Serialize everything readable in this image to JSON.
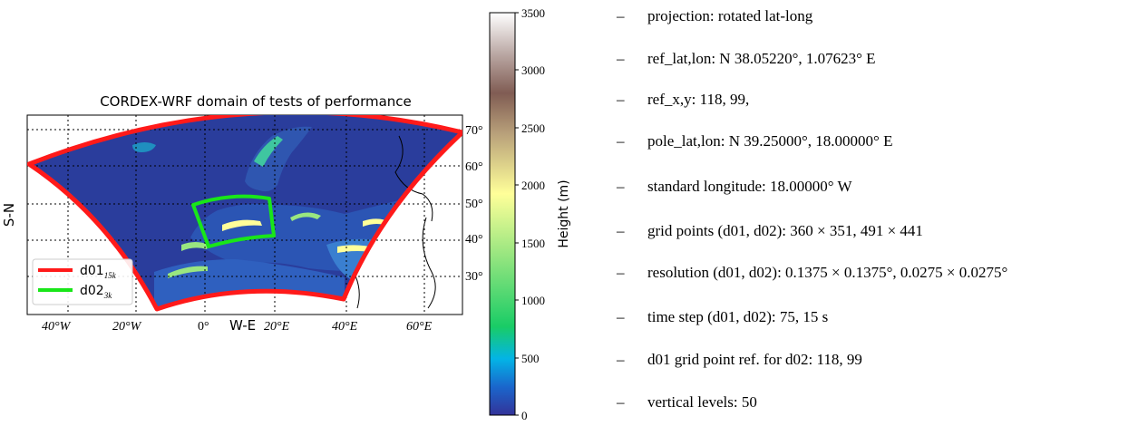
{
  "map": {
    "title": "CORDEX-WRF domain of tests of performance",
    "xlabel": "W-E",
    "ylabel": "S-N",
    "lon_ticks": [
      "40°W",
      "20°W",
      "0°",
      "20°E",
      "40°E",
      "60°E"
    ],
    "lat_ticks": [
      "70°",
      "60°",
      "50°",
      "40°",
      "30°"
    ],
    "legend": [
      {
        "label": "d01",
        "subscript": "15k",
        "color": "#ff1a1a"
      },
      {
        "label": "d02",
        "subscript": "3k",
        "color": "#19e619"
      }
    ],
    "colors": {
      "ocean": "#2a3d9c",
      "d01": "#ff1a1a",
      "d02": "#19e619"
    }
  },
  "colorbar": {
    "label": "Height (m)",
    "ticks": [
      "3500",
      "3000",
      "2500",
      "2000",
      "1500",
      "1000",
      "500",
      "0"
    ],
    "range": [
      0,
      3500
    ],
    "colormap": "terrain"
  },
  "params": [
    {
      "dash": "–",
      "text": "projection: rotated lat-long"
    },
    {
      "dash": "–",
      "text": "ref_lat,lon: N 38.05220°, 1.07623° E"
    },
    {
      "dash": "–",
      "text": "ref_x,y: 118, 99,"
    },
    {
      "dash": "–",
      "text": "pole_lat,lon: N 39.25000°, 18.00000° E"
    },
    {
      "dash": "–",
      "text": "standard longitude: 18.00000° W"
    },
    {
      "dash": "–",
      "text": "grid points (d01, d02): 360 × 351, 491 × 441"
    },
    {
      "dash": "–",
      "text": "resolution (d01, d02): 0.1375 × 0.1375°, 0.0275 × 0.0275°"
    },
    {
      "dash": "–",
      "text": "time step (d01, d02): 75, 15 s"
    },
    {
      "dash": "–",
      "text": "d01 grid point ref. for d02: 118, 99"
    },
    {
      "dash": "–",
      "text": "vertical levels: 50"
    }
  ]
}
